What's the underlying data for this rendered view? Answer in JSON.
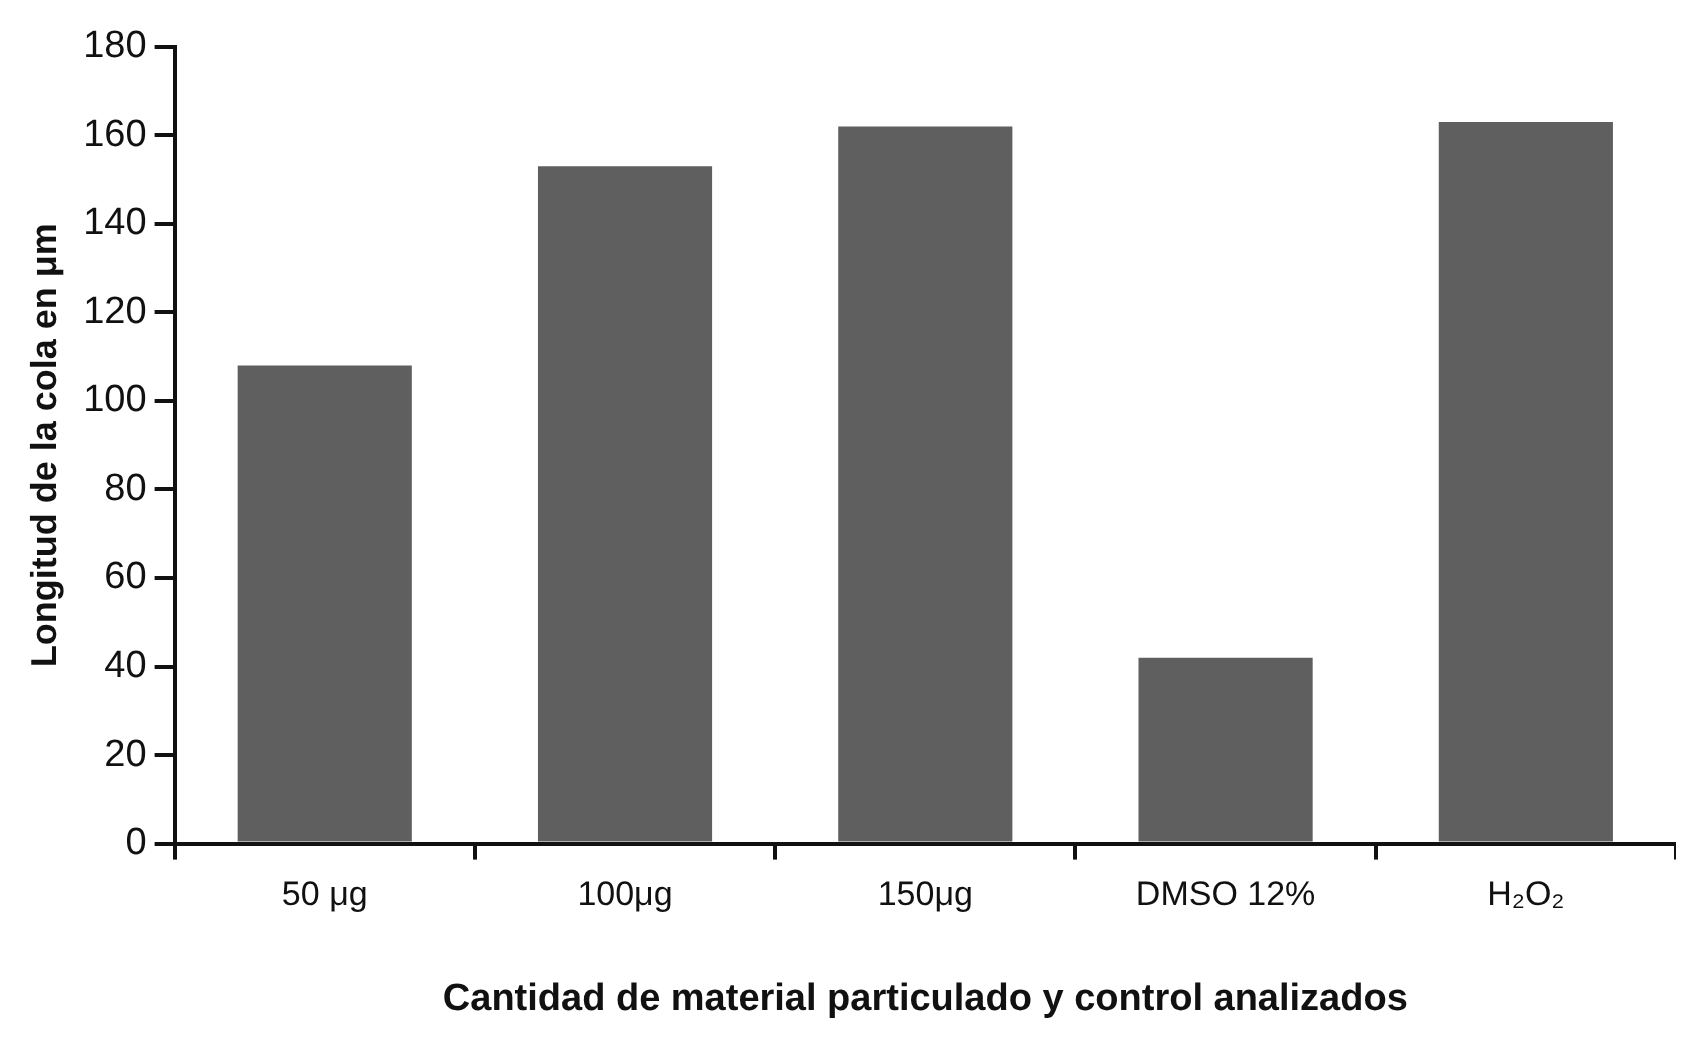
{
  "chart_data": {
    "type": "bar",
    "xlabel": "Cantidad de material particulado y control analizados",
    "ylabel": "Longitud de la cola en μm",
    "categories": [
      "50 μg",
      "100μg",
      "150μg",
      "DMSO 12%",
      "H₂O₂"
    ],
    "values": [
      108,
      153,
      162,
      42,
      163
    ],
    "color": "#5f5f5f",
    "ylim": [
      0,
      180
    ],
    "yticks": [
      0,
      20,
      40,
      60,
      80,
      100,
      120,
      140,
      160,
      180
    ],
    "grid": false
  }
}
